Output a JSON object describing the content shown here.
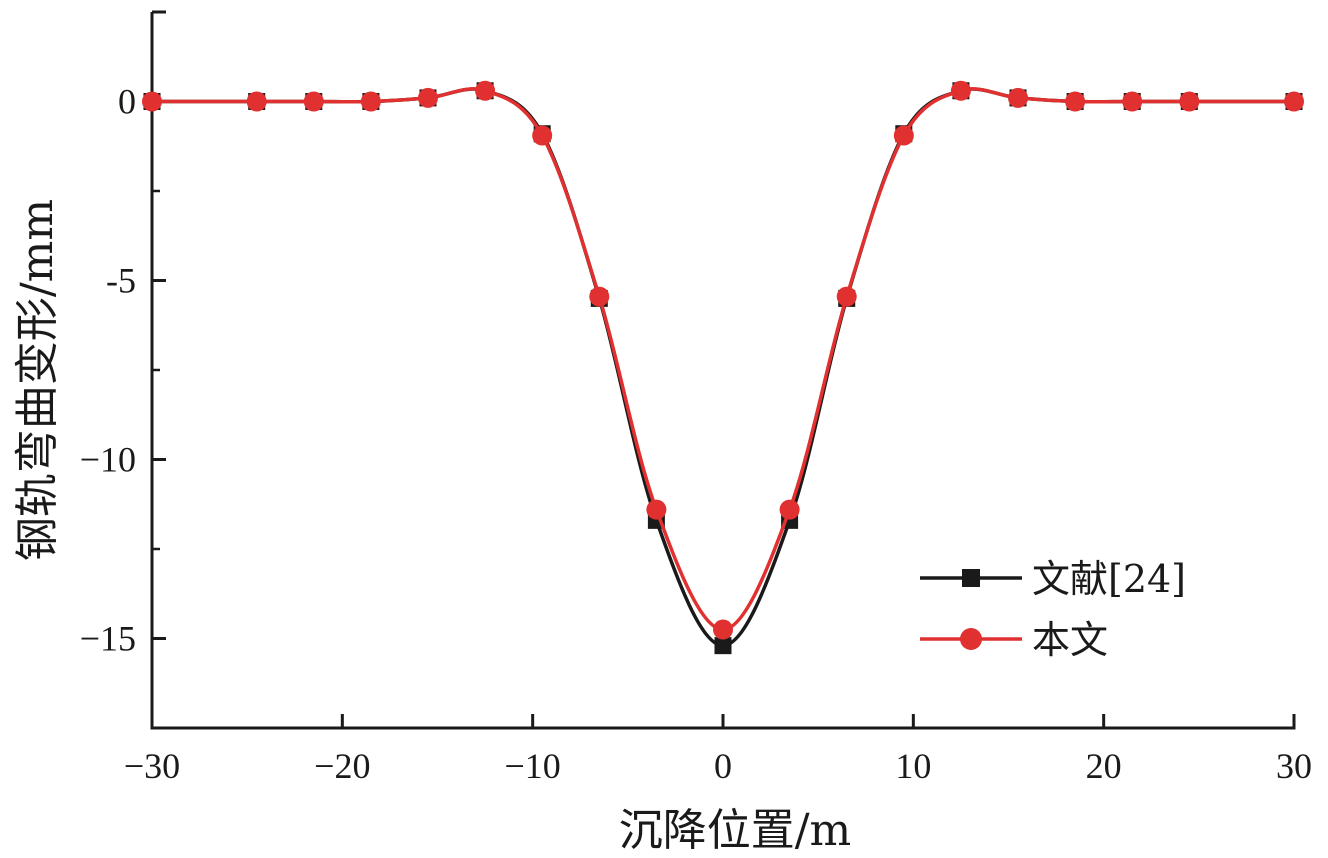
{
  "chart_data": {
    "type": "line",
    "xlabel": "沉降位置/m",
    "ylabel": "钢轨弯曲变形/mm",
    "xlim": [
      -30,
      30
    ],
    "ylim": [
      -17.5,
      2.5
    ],
    "xticks": [
      -30,
      -20,
      -10,
      0,
      10,
      20,
      30
    ],
    "xtick_labels": [
      "−30",
      "−20",
      "−10",
      "0",
      "10",
      "20",
      "30"
    ],
    "yticks": [
      0,
      -5,
      -10,
      -15
    ],
    "ytick_labels": [
      "0",
      "-5",
      "−10",
      "−15"
    ],
    "grid": false,
    "legend_position": "bottom-right",
    "series": [
      {
        "name": "文献[24]",
        "color": "#1a1a1a",
        "marker": "square",
        "x": [
          -30,
          -24.5,
          -21.5,
          -18.5,
          -15.5,
          -12.5,
          -9.5,
          -6.5,
          -3.5,
          0,
          3.5,
          6.5,
          9.5,
          12.5,
          15.5,
          18.5,
          21.5,
          24.5,
          30
        ],
        "y": [
          0,
          0,
          0,
          0,
          0.1,
          0.3,
          -0.9,
          -5.5,
          -11.7,
          -15.2,
          -11.7,
          -5.5,
          -0.9,
          0.3,
          0.1,
          0,
          0,
          0,
          0
        ]
      },
      {
        "name": "本文",
        "color": "#e03030",
        "marker": "circle",
        "x": [
          -30,
          -24.5,
          -21.5,
          -18.5,
          -15.5,
          -12.5,
          -9.5,
          -6.5,
          -3.5,
          0,
          3.5,
          6.5,
          9.5,
          12.5,
          15.5,
          18.5,
          21.5,
          24.5,
          30
        ],
        "y": [
          0,
          0,
          0,
          0,
          0.1,
          0.3,
          -0.95,
          -5.45,
          -11.4,
          -14.75,
          -11.4,
          -5.45,
          -0.95,
          0.3,
          0.1,
          0,
          0,
          0,
          0
        ]
      }
    ]
  }
}
